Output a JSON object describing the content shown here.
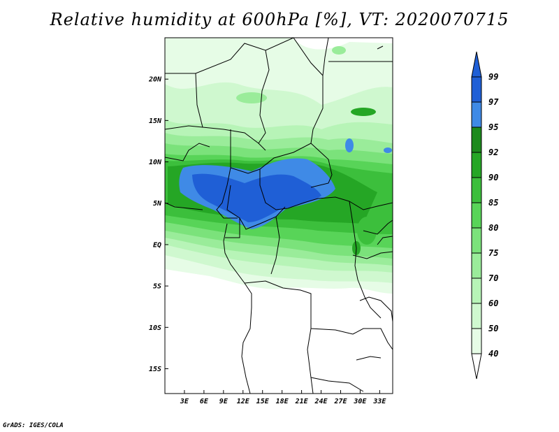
{
  "title": "Relative humidity at 600hPa [%], VT: 2020070715",
  "credit": "GrADS: IGES/COLA",
  "map": {
    "projection": "lat-lon",
    "lon_range": [
      0,
      35
    ],
    "lat_range": [
      -18,
      25
    ],
    "lat_ticks": [
      "20N",
      "15N",
      "10N",
      "5N",
      "EQ",
      "5S",
      "10S",
      "15S"
    ],
    "lat_tick_values": [
      20,
      15,
      10,
      5,
      0,
      -5,
      -10,
      -15
    ],
    "lon_ticks": [
      "3E",
      "6E",
      "9E",
      "12E",
      "15E",
      "18E",
      "21E",
      "24E",
      "27E",
      "30E",
      "33E"
    ],
    "lon_tick_values": [
      3,
      6,
      9,
      12,
      15,
      18,
      21,
      24,
      27,
      30,
      33
    ]
  },
  "colorbar": {
    "labels": [
      "99",
      "97",
      "95",
      "92",
      "90",
      "85",
      "80",
      "75",
      "70",
      "60",
      "50",
      "40"
    ],
    "colors_top_to_bottom": [
      "#1f5fd6",
      "#3f8ae6",
      "#1c8a1c",
      "#25a625",
      "#3cbf3c",
      "#58d458",
      "#7be27b",
      "#9aec9a",
      "#b7f4b7",
      "#cff8cf",
      "#e6fce6"
    ],
    "overflow_top_color": "#1f5fd6",
    "overflow_bottom_color": "#ffffff"
  }
}
